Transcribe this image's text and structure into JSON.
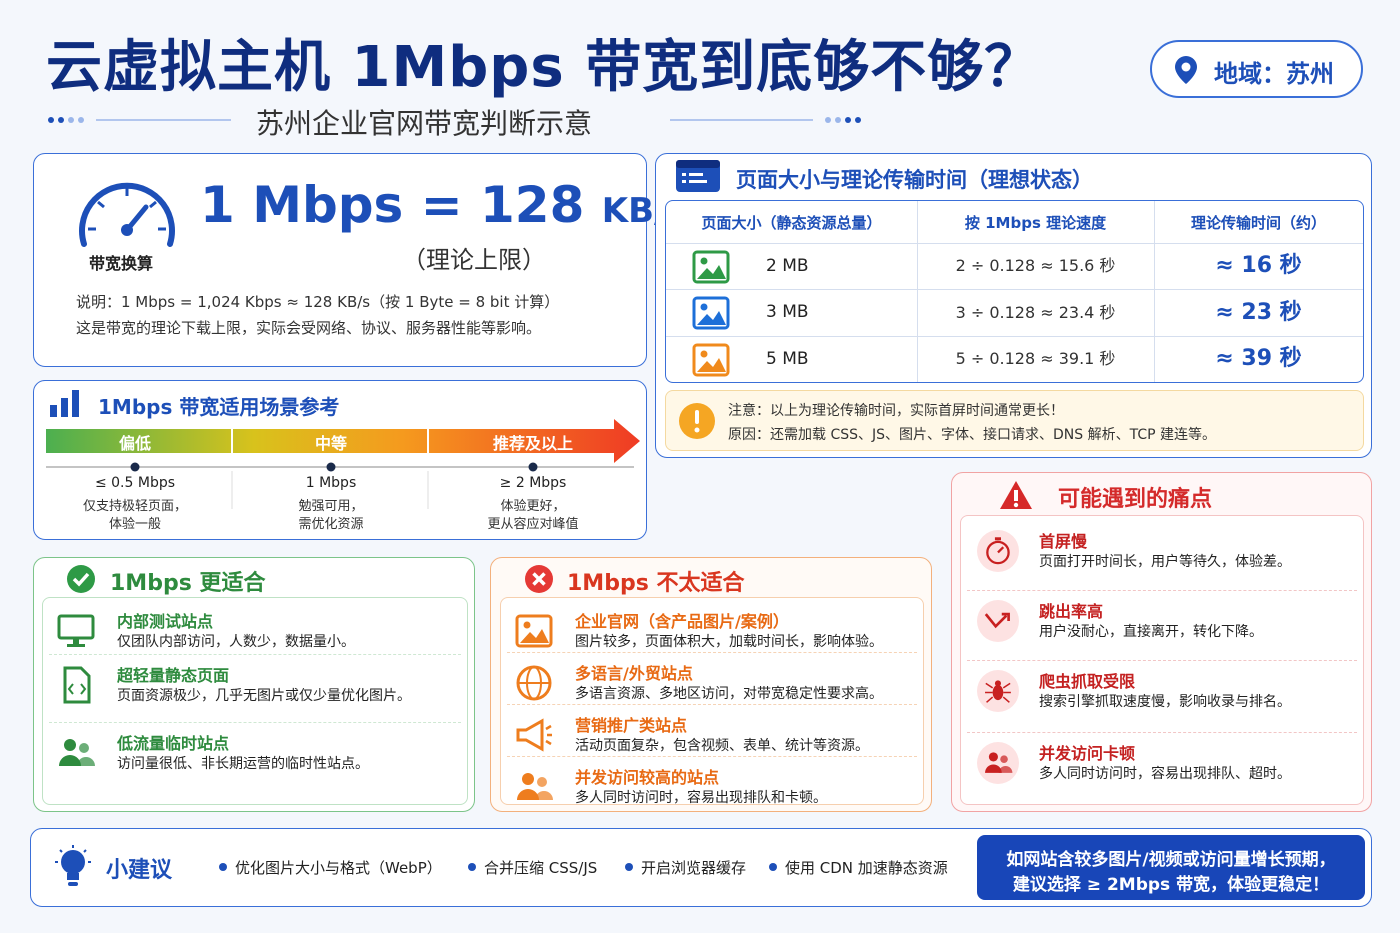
{
  "header": {
    "title": "云虚拟主机 1Mbps 带宽到底够不够？",
    "subtitle": "苏州企业官网带宽判断示意",
    "region": "地域：苏州"
  },
  "conversion": {
    "icon_label": "带宽换算",
    "formula_left": "1 Mbps = 128",
    "formula_unit": "KB/s",
    "note": "（理论上限）",
    "explain": [
      "说明：1 Mbps = 1,024 Kbps ≈ 128 KB/s（按 1 Byte = 8 bit 计算）",
      "这是带宽的理论下载上限，实际会受网络、协议、服务器性能等影响。"
    ]
  },
  "scenarios": {
    "title": "1Mbps 带宽适用场景参考",
    "levels": [
      {
        "label": "偏低",
        "speed": "≤ 0.5 Mbps",
        "desc": [
          "仅支持极轻页面，",
          "体验一般"
        ]
      },
      {
        "label": "中等",
        "speed": "1 Mbps",
        "desc": [
          "勉强可用，",
          "需优化资源"
        ]
      },
      {
        "label": "推荐及以上",
        "speed": "≥ 2 Mbps",
        "desc": [
          "体验更好，",
          "更从容应对峰值"
        ]
      }
    ]
  },
  "page_size_table": {
    "title": "页面大小与理论传输时间（理想状态）",
    "columns": [
      "页面大小（静态资源总量）",
      "按 1Mbps 理论速度",
      "理论传输时间（约）"
    ],
    "rows": [
      [
        "2 MB",
        "2 ÷ 0.128 ≈ 15.6 秒",
        "≈ 16 秒"
      ],
      [
        "3 MB",
        "3 ÷ 0.128 ≈ 23.4 秒",
        "≈ 23 秒"
      ],
      [
        "5 MB",
        "5 ÷ 0.128 ≈ 39.1 秒",
        "≈ 39 秒"
      ]
    ],
    "notice": [
      "注意：以上为理论传输时间，实际首屏时间通常更长！",
      "原因：还需加载 CSS、JS、图片、字体、接口请求、DNS 解析、TCP 建连等。"
    ]
  },
  "suitable": {
    "title": "1Mbps 更适合",
    "items": [
      {
        "title": "内部测试站点",
        "desc": "仅团队内部访问，人数少，数据量小。"
      },
      {
        "title": "超轻量静态页面",
        "desc": "页面资源极少，几乎无图片或仅少量优化图片。"
      },
      {
        "title": "低流量临时站点",
        "desc": "访问量很低、非长期运营的临时性站点。"
      }
    ]
  },
  "unsuitable": {
    "title": "1Mbps 不太适合",
    "items": [
      {
        "title": "企业官网（含产品图片/案例）",
        "desc": "图片较多，页面体积大，加载时间长，影响体验。"
      },
      {
        "title": "多语言/外贸站点",
        "desc": "多语言资源、多地区访问，对带宽稳定性要求高。"
      },
      {
        "title": "营销推广类站点",
        "desc": "活动页面复杂，包含视频、表单、统计等资源。"
      },
      {
        "title": "并发访问较高的站点",
        "desc": "多人同时访问时，容易出现排队和卡顿。"
      }
    ]
  },
  "pain_points": {
    "title": "可能遇到的痛点",
    "items": [
      {
        "title": "首屏慢",
        "desc": "页面打开时间长，用户等待久，体验差。"
      },
      {
        "title": "跳出率高",
        "desc": "用户没耐心，直接离开，转化下降。"
      },
      {
        "title": "爬虫抓取受限",
        "desc": "搜索引擎抓取速度慢，影响收录与排名。"
      },
      {
        "title": "并发访问卡顿",
        "desc": "多人同时访问时，容易出现排队、超时。"
      }
    ]
  },
  "tips": {
    "title": "小建议",
    "items": [
      "优化图片大小与格式（WebP）",
      "合并压缩 CSS/JS",
      "开启浏览器缓存",
      "使用 CDN 加速静态资源"
    ],
    "callout": [
      "如网站含较多图片/视频或访问量增长预期，",
      "建议选择 ≥ 2Mbps 带宽，体验更稳定！"
    ]
  }
}
